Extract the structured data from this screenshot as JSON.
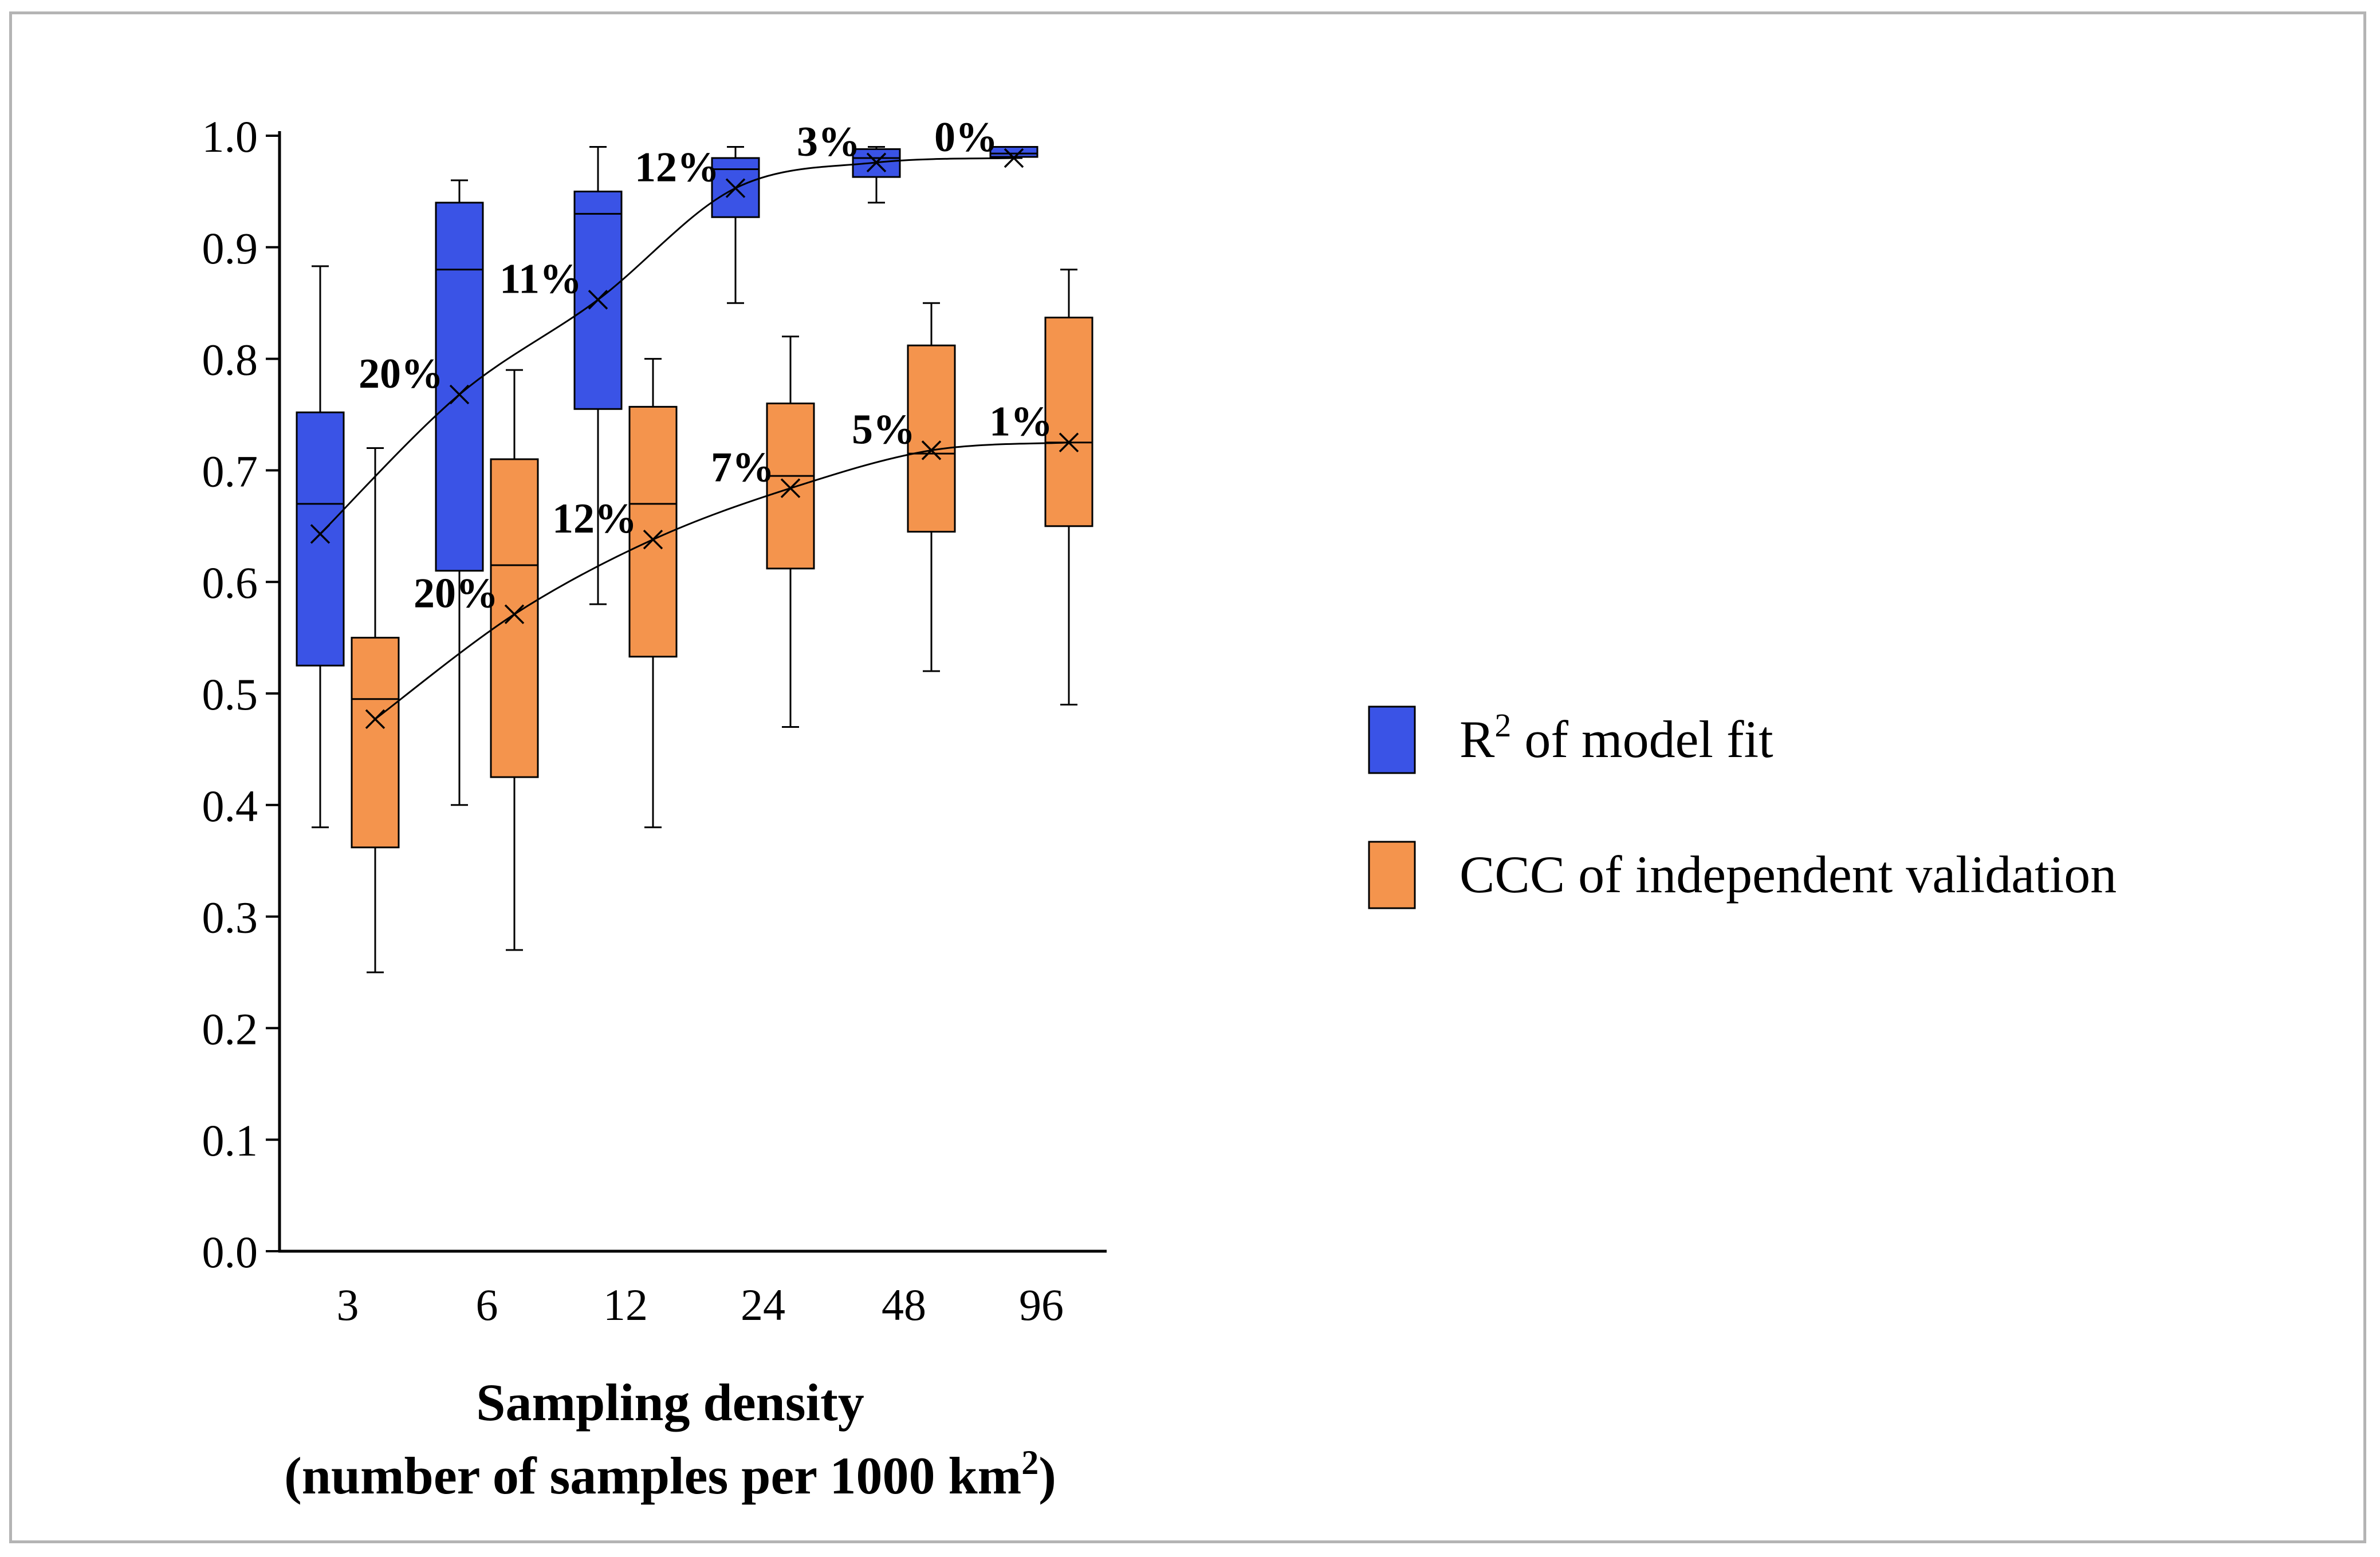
{
  "chart_data": {
    "type": "box",
    "categories": [
      "3",
      "6",
      "12",
      "24",
      "48",
      "96"
    ],
    "xlabel_line1": "Sampling density",
    "xlabel_line2_prefix": "(number of samples per 1000 km",
    "xlabel_line2_sup": "2",
    "xlabel_line2_suffix": ")",
    "ylim": [
      0.0,
      1.0
    ],
    "yticks": [
      "0.0",
      "0.1",
      "0.2",
      "0.3",
      "0.4",
      "0.5",
      "0.6",
      "0.7",
      "0.8",
      "0.9",
      "1.0"
    ],
    "series": [
      {
        "name": "R² of model fit",
        "legend_prefix": "R",
        "legend_sup": "2",
        "legend_suffix": " of model fit",
        "color": "#3a53e6",
        "boxes": [
          {
            "min": 0.38,
            "q1": 0.525,
            "median": 0.67,
            "q3": 0.752,
            "max": 0.883,
            "mean": 0.643
          },
          {
            "min": 0.4,
            "q1": 0.61,
            "median": 0.88,
            "q3": 0.94,
            "max": 0.96,
            "mean": 0.768
          },
          {
            "min": 0.58,
            "q1": 0.755,
            "median": 0.93,
            "q3": 0.95,
            "max": 0.99,
            "mean": 0.853
          },
          {
            "min": 0.85,
            "q1": 0.927,
            "median": 0.97,
            "q3": 0.98,
            "max": 0.99,
            "mean": 0.953
          },
          {
            "min": 0.94,
            "q1": 0.963,
            "median": 0.98,
            "q3": 0.988,
            "max": 0.99,
            "mean": 0.976
          },
          {
            "min": 0.98,
            "q1": 0.981,
            "median": 0.984,
            "q3": 0.99,
            "max": 0.99,
            "mean": 0.98
          }
        ],
        "labels": [
          "20%",
          "11%",
          "12%",
          "3%",
          "0%"
        ]
      },
      {
        "name": "CCC of independent validation",
        "color": "#f4944d",
        "boxes": [
          {
            "min": 0.25,
            "q1": 0.362,
            "median": 0.495,
            "q3": 0.55,
            "max": 0.72,
            "mean": 0.477
          },
          {
            "min": 0.27,
            "q1": 0.425,
            "median": 0.615,
            "q3": 0.71,
            "max": 0.79,
            "mean": 0.571
          },
          {
            "min": 0.38,
            "q1": 0.533,
            "median": 0.67,
            "q3": 0.757,
            "max": 0.8,
            "mean": 0.638
          },
          {
            "min": 0.47,
            "q1": 0.612,
            "median": 0.695,
            "q3": 0.76,
            "max": 0.82,
            "mean": 0.684
          },
          {
            "min": 0.52,
            "q1": 0.645,
            "median": 0.715,
            "q3": 0.812,
            "max": 0.85,
            "mean": 0.718
          },
          {
            "min": 0.49,
            "q1": 0.65,
            "median": 0.725,
            "q3": 0.837,
            "max": 0.88,
            "mean": 0.725
          }
        ],
        "labels": [
          "20%",
          "12%",
          "7%",
          "5%",
          "1%"
        ]
      }
    ]
  }
}
